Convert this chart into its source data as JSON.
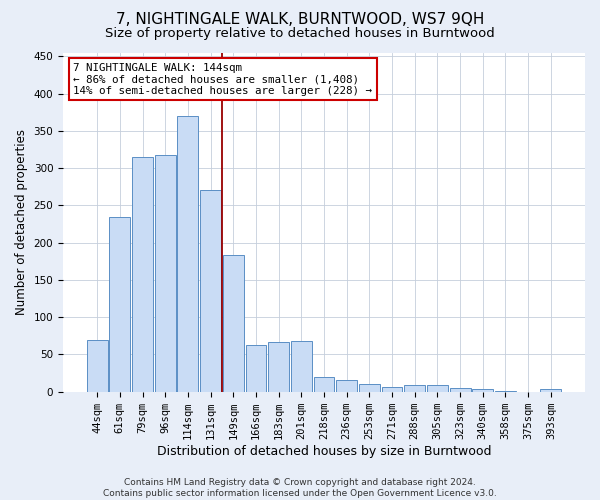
{
  "title": "7, NIGHTINGALE WALK, BURNTWOOD, WS7 9QH",
  "subtitle": "Size of property relative to detached houses in Burntwood",
  "xlabel": "Distribution of detached houses by size in Burntwood",
  "ylabel": "Number of detached properties",
  "categories": [
    "44sqm",
    "61sqm",
    "79sqm",
    "96sqm",
    "114sqm",
    "131sqm",
    "149sqm",
    "166sqm",
    "183sqm",
    "201sqm",
    "218sqm",
    "236sqm",
    "253sqm",
    "271sqm",
    "288sqm",
    "305sqm",
    "323sqm",
    "340sqm",
    "358sqm",
    "375sqm",
    "393sqm"
  ],
  "values": [
    70,
    235,
    315,
    317,
    370,
    270,
    183,
    63,
    67,
    68,
    20,
    16,
    10,
    7,
    9,
    9,
    5,
    3,
    1,
    0,
    3
  ],
  "bar_color": "#c9dcf5",
  "bar_edge_color": "#5a8fc5",
  "vline_x": 5.5,
  "vline_color": "#990000",
  "annotation_text": "7 NIGHTINGALE WALK: 144sqm\n← 86% of detached houses are smaller (1,408)\n14% of semi-detached houses are larger (228) →",
  "annotation_box_color": "white",
  "annotation_box_edge_color": "#cc0000",
  "ylim": [
    0,
    455
  ],
  "yticks": [
    0,
    50,
    100,
    150,
    200,
    250,
    300,
    350,
    400,
    450
  ],
  "footnote": "Contains HM Land Registry data © Crown copyright and database right 2024.\nContains public sector information licensed under the Open Government Licence v3.0.",
  "bg_color": "#e8eef8",
  "plot_bg_color": "white",
  "title_fontsize": 11,
  "subtitle_fontsize": 9.5,
  "tick_fontsize": 7.5,
  "ylabel_fontsize": 8.5,
  "xlabel_fontsize": 9,
  "annotation_fontsize": 7.8,
  "footnote_fontsize": 6.5
}
